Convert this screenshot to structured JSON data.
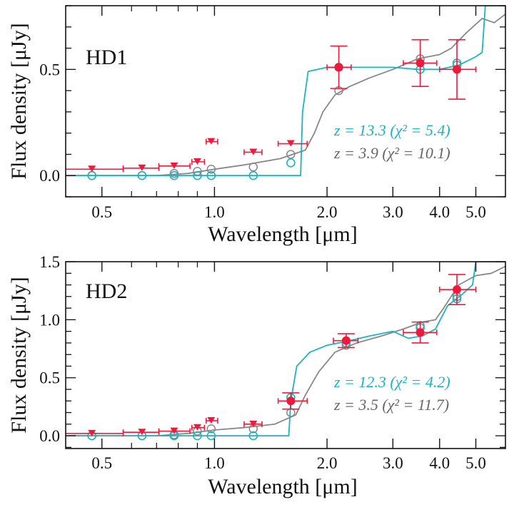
{
  "colors": {
    "high_z_model": "#1ab4c0",
    "low_z_model": "#888888",
    "observed": "#f0193c",
    "axis": "#111111"
  },
  "chart_data": [
    {
      "type": "scatter",
      "panel_label": "HD1",
      "xlabel": "Wavelength [μm]",
      "ylabel": "Flux density [μJy]",
      "xscale": "log",
      "xlim": [
        0.4,
        6.0
      ],
      "ylim": [
        -0.1,
        0.8
      ],
      "xticks": [
        0.5,
        1.0,
        2.0,
        3.0,
        4.0,
        5.0
      ],
      "xtick_labels": [
        "0.5",
        "1.0",
        "2.0",
        "3.0",
        "4.0",
        "5.0"
      ],
      "yticks": [
        0.0,
        0.5
      ],
      "ytick_labels": [
        "0.0",
        "0.5"
      ],
      "annotations": [
        {
          "text": "z = 13.3 (χ² = 5.4)",
          "series": "high_z_model"
        },
        {
          "text": "z = 3.9 (χ² = 10.1)",
          "series": "low_z_model"
        }
      ],
      "upper_limits": {
        "x": [
          0.47,
          0.64,
          0.78,
          0.9,
          0.98,
          1.27,
          1.6
        ],
        "x_err_lo": [
          0.09,
          0.07,
          0.07,
          0.03,
          0.03,
          0.07,
          0.12
        ],
        "x_err_hi": [
          0.1,
          0.07,
          0.08,
          0.04,
          0.04,
          0.07,
          0.17
        ],
        "y": [
          0.03,
          0.035,
          0.045,
          0.065,
          0.16,
          0.11,
          0.15
        ]
      },
      "detections": {
        "x": [
          2.15,
          3.55,
          4.45
        ],
        "x_err_lo": [
          0.15,
          0.35,
          0.45
        ],
        "x_err_hi": [
          0.17,
          0.38,
          0.55
        ],
        "y": [
          0.51,
          0.53,
          0.5
        ],
        "y_err": [
          0.1,
          0.11,
          0.14
        ]
      },
      "model_photometry": {
        "high_z": {
          "x": [
            0.47,
            0.64,
            0.78,
            0.9,
            0.98,
            1.27,
            1.6,
            2.15,
            3.55,
            4.45
          ],
          "y": [
            0.0,
            0.0,
            0.0,
            0.0,
            0.0,
            0.0,
            0.06,
            0.51,
            0.5,
            0.53
          ]
        },
        "low_z": {
          "x": [
            0.47,
            0.64,
            0.78,
            0.9,
            0.98,
            1.27,
            1.6,
            2.15,
            3.55,
            4.45
          ],
          "y": [
            0.0,
            0.0,
            0.01,
            0.02,
            0.03,
            0.04,
            0.1,
            0.4,
            0.55,
            0.52
          ]
        }
      },
      "model_spectra": {
        "high_z": {
          "x": [
            0.4,
            1.7,
            1.72,
            1.78,
            2.0,
            2.5,
            3.0,
            3.5,
            4.0,
            4.5,
            5.0,
            5.2,
            5.3,
            6.0
          ],
          "y": [
            0.0,
            0.0,
            0.3,
            0.49,
            0.51,
            0.51,
            0.51,
            0.5,
            0.5,
            0.52,
            0.56,
            0.58,
            0.8,
            0.8
          ]
        },
        "low_z": {
          "x": [
            0.4,
            0.7,
            0.85,
            1.0,
            1.2,
            1.5,
            1.75,
            1.85,
            1.95,
            2.1,
            2.3,
            2.6,
            3.0,
            3.5,
            4.0,
            4.3,
            4.7,
            5.2,
            5.6,
            6.0
          ],
          "y": [
            0.0,
            0.0,
            0.01,
            0.03,
            0.05,
            0.08,
            0.12,
            0.2,
            0.3,
            0.38,
            0.42,
            0.46,
            0.5,
            0.55,
            0.57,
            0.6,
            0.67,
            0.74,
            0.72,
            0.76
          ]
        }
      }
    },
    {
      "type": "scatter",
      "panel_label": "HD2",
      "xlabel": "Wavelength [μm]",
      "ylabel": "Flux density [μJy]",
      "xscale": "log",
      "xlim": [
        0.4,
        6.0
      ],
      "ylim": [
        -0.11,
        1.5
      ],
      "xticks": [
        0.5,
        1.0,
        2.0,
        3.0,
        4.0,
        5.0
      ],
      "xtick_labels": [
        "0.5",
        "1.0",
        "2.0",
        "3.0",
        "4.0",
        "5.0"
      ],
      "yticks": [
        0.0,
        0.5,
        1.0,
        1.5
      ],
      "ytick_labels": [
        "0.0",
        "0.5",
        "1.0",
        "1.5"
      ],
      "annotations": [
        {
          "text": "z = 12.3 (χ² = 4.2)",
          "series": "high_z_model"
        },
        {
          "text": "z = 3.5 (χ² = 11.7)",
          "series": "low_z_model"
        }
      ],
      "upper_limits": {
        "x": [
          0.47,
          0.64,
          0.78,
          0.9,
          0.98,
          1.27
        ],
        "x_err_lo": [
          0.09,
          0.07,
          0.07,
          0.03,
          0.03,
          0.07
        ],
        "x_err_hi": [
          0.1,
          0.07,
          0.08,
          0.04,
          0.04,
          0.07
        ],
        "y": [
          0.02,
          0.03,
          0.04,
          0.07,
          0.13,
          0.1
        ]
      },
      "detections": {
        "x": [
          1.6,
          2.25,
          3.55,
          4.45
        ],
        "x_err_lo": [
          0.12,
          0.17,
          0.35,
          0.45
        ],
        "x_err_hi": [
          0.17,
          0.17,
          0.38,
          0.55
        ],
        "y": [
          0.3,
          0.82,
          0.89,
          1.26
        ],
        "y_err": [
          0.07,
          0.06,
          0.09,
          0.13
        ]
      },
      "model_photometry": {
        "high_z": {
          "x": [
            0.47,
            0.64,
            0.78,
            0.9,
            0.98,
            1.27,
            1.6,
            2.25,
            3.55,
            4.45
          ],
          "y": [
            0.0,
            0.0,
            0.0,
            0.0,
            0.0,
            0.0,
            0.33,
            0.8,
            0.93,
            1.18
          ]
        },
        "low_z": {
          "x": [
            0.47,
            0.64,
            0.78,
            0.9,
            0.98,
            1.27,
            1.6,
            2.25,
            3.55,
            4.45
          ],
          "y": [
            0.0,
            0.0,
            0.01,
            0.04,
            0.06,
            0.06,
            0.2,
            0.78,
            0.95,
            1.2
          ]
        }
      },
      "model_spectra": {
        "high_z": {
          "x": [
            0.4,
            1.58,
            1.6,
            1.66,
            1.8,
            2.0,
            2.3,
            2.6,
            3.0,
            3.3,
            3.6,
            3.9,
            4.2,
            4.6,
            4.9,
            5.0,
            6.0
          ],
          "y": [
            0.0,
            0.0,
            0.3,
            0.6,
            0.72,
            0.78,
            0.82,
            0.86,
            0.9,
            0.84,
            0.86,
            0.92,
            1.12,
            1.22,
            1.3,
            1.5,
            1.5
          ]
        },
        "low_z": {
          "x": [
            0.4,
            0.7,
            0.85,
            1.0,
            1.2,
            1.45,
            1.65,
            1.75,
            1.9,
            2.1,
            2.4,
            2.8,
            3.2,
            3.6,
            3.9,
            4.1,
            4.5,
            5.0,
            5.5,
            6.0
          ],
          "y": [
            0.0,
            0.0,
            0.02,
            0.05,
            0.07,
            0.1,
            0.18,
            0.35,
            0.55,
            0.72,
            0.8,
            0.86,
            0.92,
            0.98,
            1.0,
            1.1,
            1.3,
            1.38,
            1.4,
            1.46
          ]
        }
      }
    }
  ]
}
